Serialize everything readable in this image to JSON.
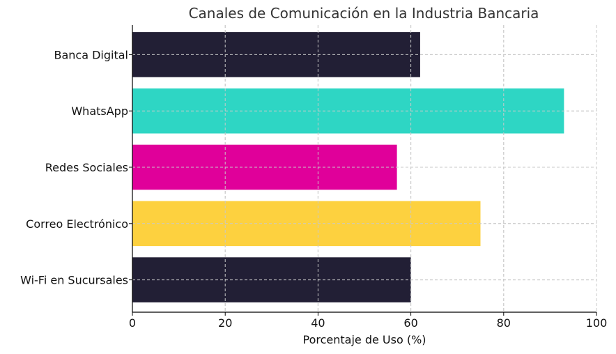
{
  "chart_data": {
    "type": "bar",
    "orientation": "horizontal",
    "title": "Canales de Comunicación en la Industria Bancaria",
    "xlabel": "Porcentaje de Uso (%)",
    "ylabel": "",
    "xlim": [
      0,
      100
    ],
    "xticks": [
      0,
      20,
      40,
      60,
      80,
      100
    ],
    "grid": true,
    "categories": [
      "Wi-Fi en Sucursales",
      "Correo Electrónico",
      "Redes Sociales",
      "WhatsApp",
      "Banca Digital"
    ],
    "values": [
      60,
      75,
      57,
      93,
      62
    ],
    "colors": [
      "#221f35",
      "#fdd13f",
      "#e0009a",
      "#2ed6c4",
      "#221f35"
    ]
  }
}
